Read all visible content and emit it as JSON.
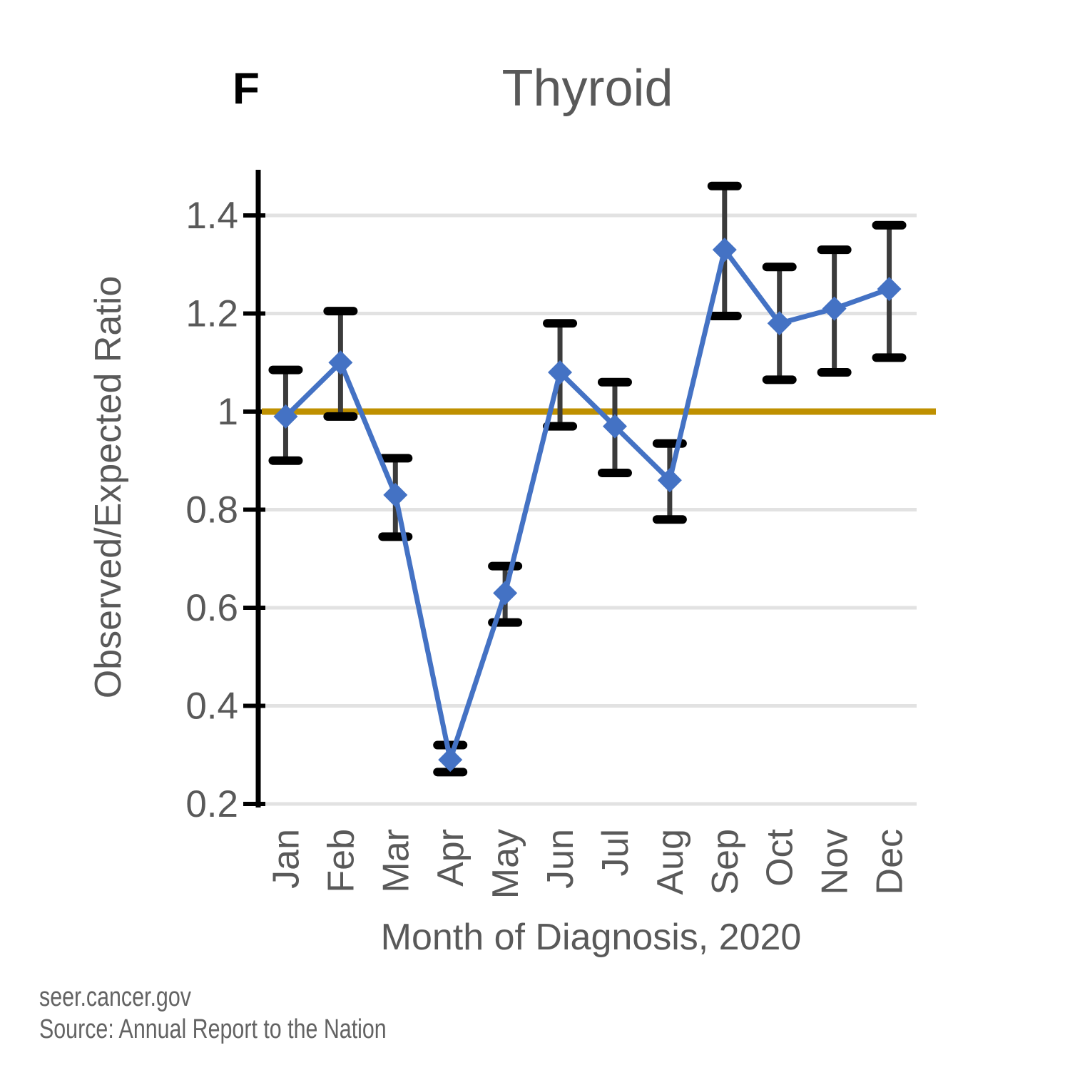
{
  "panel_label": "F",
  "title": "Thyroid",
  "y_axis": {
    "label": "Observed/Expected Ratio"
  },
  "x_axis": {
    "label": "Month of Diagnosis, 2020"
  },
  "footer": {
    "line1": "seer.cancer.gov",
    "line2": "Source: Annual Report to the Nation"
  },
  "colors": {
    "series": "#4472C4",
    "reference_line": "#BF9000",
    "gridline": "#E2E2E2",
    "axis": "#000000",
    "error_cap": "#000000",
    "error_connector": "#3B3B3B",
    "text": "#595959"
  },
  "chart_data": {
    "type": "line",
    "title": "Thyroid",
    "xlabel": "Month of Diagnosis, 2020",
    "ylabel": "Observed/Expected Ratio",
    "categories": [
      "Jan",
      "Feb",
      "Mar",
      "Apr",
      "May",
      "Jun",
      "Jul",
      "Aug",
      "Sep",
      "Oct",
      "Nov",
      "Dec"
    ],
    "series": [
      {
        "name": "Observed/Expected Ratio",
        "values": [
          0.99,
          1.1,
          0.83,
          0.29,
          0.63,
          1.08,
          0.97,
          0.86,
          1.33,
          1.18,
          1.21,
          1.25
        ],
        "ci_high": [
          1.085,
          1.205,
          0.905,
          0.32,
          0.685,
          1.18,
          1.06,
          0.935,
          1.46,
          1.295,
          1.33,
          1.38
        ],
        "ci_low": [
          0.9,
          0.99,
          0.745,
          0.265,
          0.57,
          0.97,
          0.875,
          0.78,
          1.195,
          1.065,
          1.08,
          1.11
        ]
      }
    ],
    "reference_line_y": 1.0,
    "ylim": [
      0.2,
      1.49
    ],
    "yticks": [
      0.2,
      0.4,
      0.6,
      0.8,
      1.0,
      1.2,
      1.4
    ],
    "ytick_labels": [
      "0.2",
      "0.4",
      "0.6",
      "0.8",
      "1",
      "1.2",
      "1.4"
    ],
    "grid": "horizontal",
    "legend": "none",
    "marker": "diamond"
  }
}
